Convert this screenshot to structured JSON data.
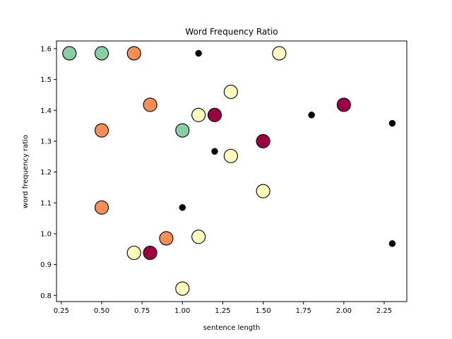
{
  "chart_data": {
    "type": "scatter",
    "title": "Word Frequency Ratio",
    "xlabel": "sentence length",
    "ylabel": "word frequency ratio",
    "xlim": [
      0.22,
      2.39
    ],
    "ylim": [
      0.78,
      1.625
    ],
    "xticks": [
      0.25,
      0.5,
      0.75,
      1.0,
      1.25,
      1.5,
      1.75,
      2.0,
      2.25
    ],
    "xtick_labels": [
      "0.25",
      "0.50",
      "0.75",
      "1.00",
      "1.25",
      "1.50",
      "1.75",
      "2.00",
      "2.25"
    ],
    "yticks": [
      0.8,
      0.9,
      1.0,
      1.1,
      1.2,
      1.3,
      1.4,
      1.5,
      1.6
    ],
    "ytick_labels": [
      "0.8",
      "0.9",
      "1.0",
      "1.1",
      "1.2",
      "1.3",
      "1.4",
      "1.5",
      "1.6"
    ],
    "grid": false,
    "colors": {
      "green": "#88d0a4",
      "orange": "#f98e52",
      "yellow": "#fefcbd",
      "crimson": "#9e0142",
      "black": "#000000"
    },
    "points": [
      {
        "x": 0.3,
        "y": 1.585,
        "color": "green",
        "size": "large"
      },
      {
        "x": 0.5,
        "y": 1.585,
        "color": "green",
        "size": "large"
      },
      {
        "x": 0.7,
        "y": 1.585,
        "color": "orange",
        "size": "large"
      },
      {
        "x": 1.1,
        "y": 1.585,
        "color": "black",
        "size": "small"
      },
      {
        "x": 1.6,
        "y": 1.585,
        "color": "yellow",
        "size": "large"
      },
      {
        "x": 1.3,
        "y": 1.46,
        "color": "yellow",
        "size": "large"
      },
      {
        "x": 0.8,
        "y": 1.418,
        "color": "orange",
        "size": "large"
      },
      {
        "x": 2.0,
        "y": 1.418,
        "color": "crimson",
        "size": "large"
      },
      {
        "x": 1.1,
        "y": 1.385,
        "color": "yellow",
        "size": "large"
      },
      {
        "x": 1.2,
        "y": 1.385,
        "color": "crimson",
        "size": "large"
      },
      {
        "x": 1.8,
        "y": 1.385,
        "color": "black",
        "size": "small"
      },
      {
        "x": 2.3,
        "y": 1.358,
        "color": "black",
        "size": "small"
      },
      {
        "x": 0.5,
        "y": 1.335,
        "color": "orange",
        "size": "large"
      },
      {
        "x": 1.0,
        "y": 1.335,
        "color": "green",
        "size": "large"
      },
      {
        "x": 1.5,
        "y": 1.3,
        "color": "crimson",
        "size": "large"
      },
      {
        "x": 1.2,
        "y": 1.267,
        "color": "black",
        "size": "small"
      },
      {
        "x": 1.3,
        "y": 1.252,
        "color": "yellow",
        "size": "large"
      },
      {
        "x": 1.5,
        "y": 1.138,
        "color": "yellow",
        "size": "large"
      },
      {
        "x": 0.5,
        "y": 1.085,
        "color": "orange",
        "size": "large"
      },
      {
        "x": 1.0,
        "y": 1.085,
        "color": "black",
        "size": "small"
      },
      {
        "x": 0.9,
        "y": 0.985,
        "color": "orange",
        "size": "large"
      },
      {
        "x": 1.1,
        "y": 0.99,
        "color": "yellow",
        "size": "large"
      },
      {
        "x": 2.3,
        "y": 0.968,
        "color": "black",
        "size": "small"
      },
      {
        "x": 0.7,
        "y": 0.938,
        "color": "yellow",
        "size": "large"
      },
      {
        "x": 0.8,
        "y": 0.938,
        "color": "crimson",
        "size": "large"
      },
      {
        "x": 1.0,
        "y": 0.822,
        "color": "yellow",
        "size": "large"
      }
    ]
  }
}
